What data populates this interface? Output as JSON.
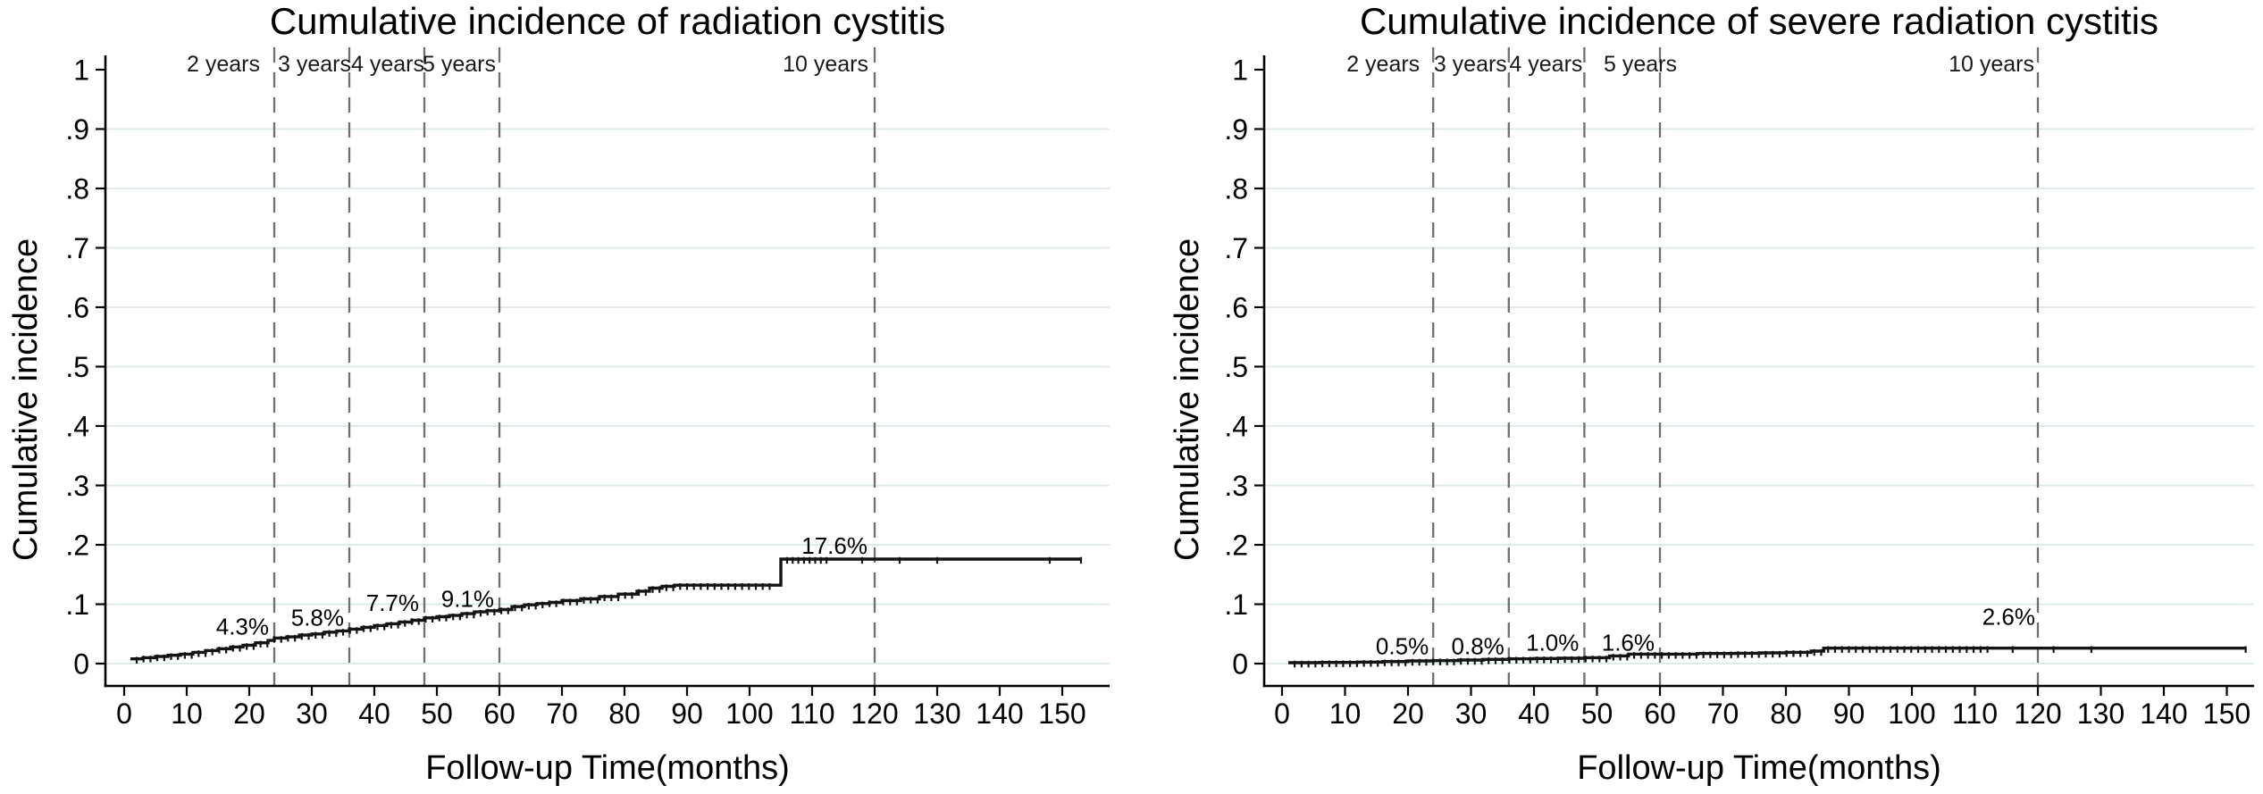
{
  "figure": {
    "background": "#ffffff"
  },
  "colors": {
    "curve": "#141414",
    "grid": "#dfeaec",
    "dashed_reference": "#6f6f6f",
    "axis": "#000000",
    "text": "#000000",
    "year_label": "#1a1a1a"
  },
  "chart_data": [
    {
      "type": "line",
      "subtype": "step-cumulative-incidence",
      "title": "Cumulative incidence of radiation cystitis",
      "xlabel": "Follow-up Time(months)",
      "ylabel": "Cumulative incidence",
      "xlim": [
        0,
        155
      ],
      "ylim": [
        0,
        1
      ],
      "grid": "horizontal",
      "x_ticks": [
        0,
        10,
        20,
        30,
        40,
        50,
        60,
        70,
        80,
        90,
        100,
        110,
        120,
        130,
        140,
        150
      ],
      "y_ticks": [
        0,
        0.1,
        0.2,
        0.3,
        0.4,
        0.5,
        0.6,
        0.7,
        0.8,
        0.9,
        1
      ],
      "y_tick_labels": [
        "0",
        ".1",
        ".2",
        ".3",
        ".4",
        ".5",
        ".6",
        ".7",
        ".8",
        ".9",
        "1"
      ],
      "reference_lines": [
        {
          "month": 24,
          "label": "2 years"
        },
        {
          "month": 36,
          "label": "3 years"
        },
        {
          "month": 48,
          "label": "4 years"
        },
        {
          "month": 60,
          "label": "5 years"
        },
        {
          "month": 120,
          "label": "10 years"
        }
      ],
      "annotations": [
        {
          "label": "4.3%",
          "month": 24,
          "value_pct": 4.3
        },
        {
          "label": "5.8%",
          "month": 36,
          "value_pct": 5.8
        },
        {
          "label": "7.7%",
          "month": 48,
          "value_pct": 7.7
        },
        {
          "label": "9.1%",
          "month": 60,
          "value_pct": 9.1
        },
        {
          "label": "17.6%",
          "month": 120,
          "value_pct": 17.6
        }
      ],
      "series": [
        {
          "name": "cumulative incidence",
          "points_month_pct": [
            [
              1,
              0.8
            ],
            [
              3,
              1.0
            ],
            [
              5,
              1.2
            ],
            [
              7,
              1.4
            ],
            [
              9,
              1.6
            ],
            [
              11,
              1.9
            ],
            [
              13,
              2.2
            ],
            [
              15,
              2.5
            ],
            [
              17,
              2.8
            ],
            [
              19,
              3.1
            ],
            [
              21,
              3.5
            ],
            [
              23,
              3.9
            ],
            [
              24,
              4.3
            ],
            [
              26,
              4.5
            ],
            [
              28,
              4.8
            ],
            [
              30,
              5.0
            ],
            [
              32,
              5.3
            ],
            [
              34,
              5.5
            ],
            [
              36,
              5.8
            ],
            [
              38,
              6.1
            ],
            [
              40,
              6.4
            ],
            [
              42,
              6.7
            ],
            [
              44,
              7.0
            ],
            [
              46,
              7.3
            ],
            [
              48,
              7.7
            ],
            [
              50,
              7.9
            ],
            [
              52,
              8.1
            ],
            [
              54,
              8.4
            ],
            [
              56,
              8.7
            ],
            [
              58,
              8.9
            ],
            [
              60,
              9.1
            ],
            [
              62,
              9.6
            ],
            [
              64,
              9.9
            ],
            [
              66,
              10.1
            ],
            [
              68,
              10.3
            ],
            [
              70,
              10.6
            ],
            [
              73,
              10.9
            ],
            [
              76,
              11.3
            ],
            [
              79,
              11.7
            ],
            [
              82,
              12.2
            ],
            [
              84,
              12.7
            ],
            [
              86,
              13.0
            ],
            [
              88,
              13.2
            ],
            [
              104.5,
              13.2
            ],
            [
              105,
              17.6
            ],
            [
              153,
              17.6
            ]
          ]
        }
      ],
      "censor_ticks": {
        "dense_from": 2,
        "dense_to": 104,
        "dense_step": 1.1,
        "sparse": [
          106,
          106.9,
          107.8,
          108.7,
          109.6,
          110.5,
          111.4,
          112.3,
          118,
          124,
          130,
          148,
          153
        ]
      }
    },
    {
      "type": "line",
      "subtype": "step-cumulative-incidence",
      "title": "Cumulative incidence of severe radiation cystitis",
      "xlabel": "Follow-up Time(months)",
      "ylabel": "Cumulative incidence",
      "xlim": [
        0,
        155
      ],
      "ylim": [
        0,
        1
      ],
      "grid": "horizontal",
      "x_ticks": [
        0,
        10,
        20,
        30,
        40,
        50,
        60,
        70,
        80,
        90,
        100,
        110,
        120,
        130,
        140,
        150
      ],
      "y_ticks": [
        0,
        0.1,
        0.2,
        0.3,
        0.4,
        0.5,
        0.6,
        0.7,
        0.8,
        0.9,
        1
      ],
      "y_tick_labels": [
        "0",
        ".1",
        ".2",
        ".3",
        ".4",
        ".5",
        ".6",
        ".7",
        ".8",
        ".9",
        "1"
      ],
      "reference_lines": [
        {
          "month": 24,
          "label": "2 years"
        },
        {
          "month": 36,
          "label": "3 years"
        },
        {
          "month": 48,
          "label": "4 years"
        },
        {
          "month": 60,
          "label": "5 years"
        },
        {
          "month": 120,
          "label": "10 years"
        }
      ],
      "annotations": [
        {
          "label": "0.5%",
          "month": 24,
          "value_pct": 0.5
        },
        {
          "label": "0.8%",
          "month": 36,
          "value_pct": 0.8
        },
        {
          "label": "1.0%",
          "month": 48,
          "value_pct": 1.0
        },
        {
          "label": "1.6%",
          "month": 60,
          "value_pct": 1.6
        },
        {
          "label": "2.6%",
          "month": 120,
          "value_pct": 2.6
        }
      ],
      "series": [
        {
          "name": "cumulative incidence",
          "points_month_pct": [
            [
              1,
              0.15
            ],
            [
              6,
              0.2
            ],
            [
              12,
              0.25
            ],
            [
              16,
              0.35
            ],
            [
              20,
              0.45
            ],
            [
              24,
              0.5
            ],
            [
              28,
              0.6
            ],
            [
              32,
              0.7
            ],
            [
              36,
              0.8
            ],
            [
              40,
              0.85
            ],
            [
              44,
              0.9
            ],
            [
              48,
              1.0
            ],
            [
              52,
              1.3
            ],
            [
              55,
              1.6
            ],
            [
              60,
              1.6
            ],
            [
              66,
              1.7
            ],
            [
              72,
              1.75
            ],
            [
              76,
              1.8
            ],
            [
              80,
              1.9
            ],
            [
              84,
              2.1
            ],
            [
              86,
              2.6
            ],
            [
              153,
              2.6
            ]
          ]
        }
      ],
      "censor_ticks": {
        "dense_from": 2,
        "dense_to": 112,
        "dense_step": 1.1,
        "sparse": [
          116,
          122.5,
          128.5,
          153
        ]
      }
    }
  ]
}
